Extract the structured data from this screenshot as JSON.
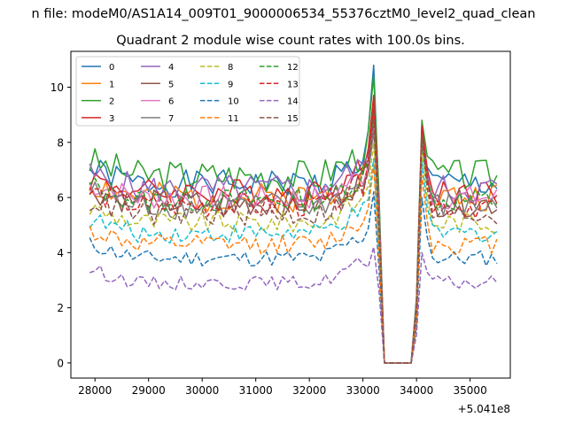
{
  "suptitle": "n file: modeM0/AS1A14_009T01_9000006534_55376cztM0_level2_quad_clean",
  "chart_data": {
    "type": "line",
    "title": "Quadrant 2 module wise count rates with 100.0s bins.",
    "xlabel": "",
    "ylabel": "",
    "x_offset_label": "+5.041e8",
    "xlim": [
      27550,
      35750
    ],
    "ylim": [
      -0.55,
      11.3
    ],
    "xticks": [
      28000,
      29000,
      30000,
      31000,
      32000,
      33000,
      34000,
      35000
    ],
    "yticks": [
      0,
      2,
      4,
      6,
      8,
      10
    ],
    "grid": false,
    "legend_position": "top-left",
    "x_start": 27900,
    "x_step": 100,
    "n_points": 77,
    "series": [
      {
        "name": "0",
        "color": "#1f77b4",
        "dash": "solid",
        "base": 6.5,
        "amp": 0.5,
        "peak1": 10.8,
        "peak2": 8.2,
        "seed": 1
      },
      {
        "name": "1",
        "color": "#ff7f0e",
        "dash": "solid",
        "base": 6.0,
        "amp": 0.55,
        "peak1": 9.6,
        "peak2": 8.0,
        "seed": 2
      },
      {
        "name": "2",
        "color": "#2ca02c",
        "dash": "solid",
        "base": 6.8,
        "amp": 0.6,
        "peak1": 10.4,
        "peak2": 8.8,
        "seed": 3
      },
      {
        "name": "3",
        "color": "#d62728",
        "dash": "solid",
        "base": 6.2,
        "amp": 0.5,
        "peak1": 9.7,
        "peak2": 8.6,
        "seed": 4
      },
      {
        "name": "4",
        "color": "#9467bd",
        "dash": "solid",
        "base": 6.3,
        "amp": 0.55,
        "peak1": 9.0,
        "peak2": 7.9,
        "seed": 5
      },
      {
        "name": "5",
        "color": "#8c564b",
        "dash": "solid",
        "base": 5.8,
        "amp": 0.5,
        "peak1": 9.3,
        "peak2": 8.4,
        "seed": 6
      },
      {
        "name": "6",
        "color": "#e377c2",
        "dash": "solid",
        "base": 6.0,
        "amp": 0.45,
        "peak1": 8.6,
        "peak2": 8.0,
        "seed": 7
      },
      {
        "name": "7",
        "color": "#7f7f7f",
        "dash": "solid",
        "base": 5.7,
        "amp": 0.5,
        "peak1": 8.4,
        "peak2": 8.2,
        "seed": 8
      },
      {
        "name": "8",
        "color": "#bcbd22",
        "dash": "dashed",
        "base": 5.1,
        "amp": 0.4,
        "peak1": 8.0,
        "peak2": 7.6,
        "seed": 9
      },
      {
        "name": "9",
        "color": "#17becf",
        "dash": "dashed",
        "base": 4.7,
        "amp": 0.35,
        "peak1": 7.4,
        "peak2": 7.3,
        "seed": 10
      },
      {
        "name": "10",
        "color": "#1f77b4",
        "dash": "dashed",
        "base": 3.8,
        "amp": 0.3,
        "peak1": 6.2,
        "peak2": 6.0,
        "seed": 11
      },
      {
        "name": "11",
        "color": "#ff7f0e",
        "dash": "dashed",
        "base": 4.3,
        "amp": 0.35,
        "peak1": 7.2,
        "peak2": 6.8,
        "seed": 12
      },
      {
        "name": "12",
        "color": "#2ca02c",
        "dash": "dashed",
        "base": 5.9,
        "amp": 0.45,
        "peak1": 9.0,
        "peak2": 8.0,
        "seed": 13
      },
      {
        "name": "13",
        "color": "#d62728",
        "dash": "dashed",
        "base": 5.7,
        "amp": 0.45,
        "peak1": 9.4,
        "peak2": 8.6,
        "seed": 14
      },
      {
        "name": "14",
        "color": "#9467bd",
        "dash": "dashed",
        "base": 2.9,
        "amp": 0.25,
        "peak1": 4.2,
        "peak2": 4.0,
        "seed": 15
      },
      {
        "name": "15",
        "color": "#8c564b",
        "dash": "dashed",
        "base": 5.4,
        "amp": 0.45,
        "peak1": 8.8,
        "peak2": 8.1,
        "seed": 16
      }
    ]
  }
}
